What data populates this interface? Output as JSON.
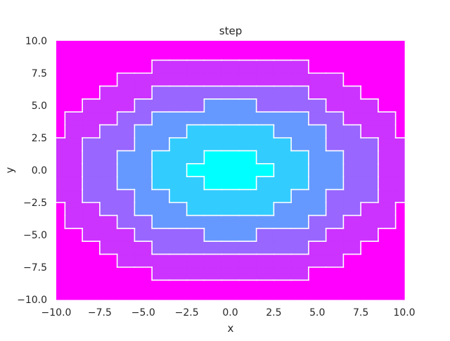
{
  "chart_data": {
    "type": "heatmap",
    "title": "step",
    "xlabel": "x",
    "ylabel": "y",
    "xlim": [
      -10.0,
      10.0
    ],
    "ylim": [
      -10.0,
      10.0
    ],
    "xticks": [
      "−10.0",
      "−7.5",
      "−5.0",
      "−2.5",
      "0.0",
      "2.5",
      "5.0",
      "7.5",
      "10.0"
    ],
    "yticks": [
      "−10.0",
      "−7.5",
      "−5.0",
      "−2.5",
      "0.0",
      "2.5",
      "5.0",
      "7.5",
      "10.0"
    ],
    "xtick_values": [
      -10,
      -7.5,
      -5,
      -2.5,
      0,
      2.5,
      5,
      7.5,
      10
    ],
    "ytick_values": [
      -10,
      -7.5,
      -5,
      -2.5,
      0,
      2.5,
      5,
      7.5,
      10
    ],
    "grid": false,
    "colormap": "cool",
    "colormap_colors": [
      "#00ffff",
      "#ff00ff"
    ],
    "levels": [
      0,
      1,
      2,
      3,
      4,
      5,
      6
    ],
    "contour_line_color": "#ffffff",
    "grid_step": 1
  }
}
